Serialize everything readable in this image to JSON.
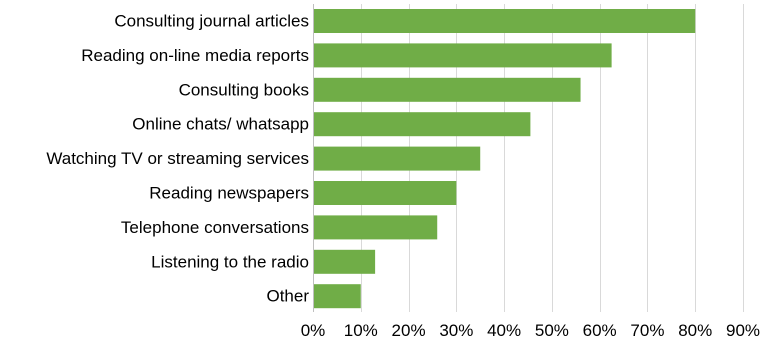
{
  "chart_data": {
    "type": "bar",
    "orientation": "horizontal",
    "title": "",
    "xlabel": "",
    "ylabel": "",
    "categories": [
      "Consulting journal articles",
      "Reading on-line media reports",
      "Consulting books",
      "Online chats/ whatsapp",
      "Watching TV or streaming services",
      "Reading newspapers",
      "Telephone conversations",
      "Listening to the radio",
      "Other"
    ],
    "values": [
      80,
      62.5,
      56,
      45.5,
      35,
      30,
      26,
      13,
      10
    ],
    "xlim": [
      0,
      90
    ],
    "xticks": [
      0,
      10,
      20,
      30,
      40,
      50,
      60,
      70,
      80,
      90
    ],
    "xtick_labels": [
      "0%",
      "10%",
      "20%",
      "30%",
      "40%",
      "50%",
      "60%",
      "70%",
      "80%",
      "90%"
    ],
    "value_unit": "%",
    "grid": true,
    "legend": "none",
    "bar_color": "#70ad47"
  }
}
